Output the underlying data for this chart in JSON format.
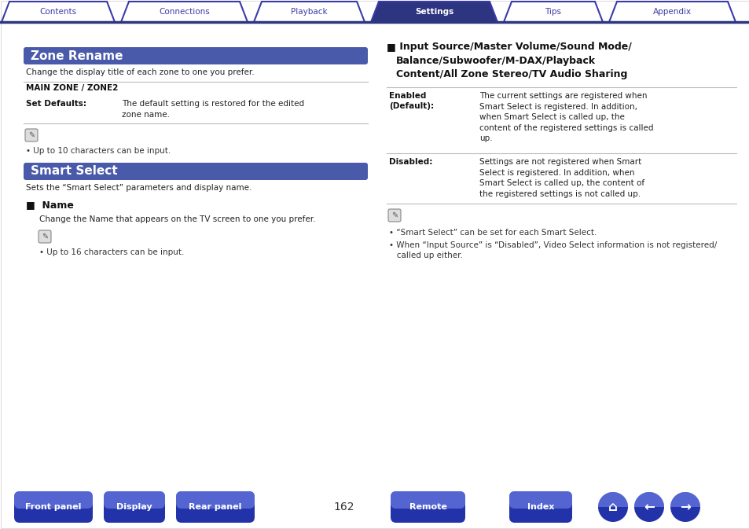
{
  "bg_color": "#ffffff",
  "tab_items": [
    "Contents",
    "Connections",
    "Playback",
    "Settings",
    "Tips",
    "Appendix"
  ],
  "tab_active_index": 3,
  "tab_active_color": "#2d3480",
  "tab_inactive_color": "#ffffff",
  "tab_text_color_active": "#ffffff",
  "tab_text_color_inactive": "#3a3aaa",
  "tab_border_color": "#3a3aaa",
  "tab_line_color": "#2d3480",
  "section1_title": "Zone Rename",
  "section1_title_bg": "#4a5aaa",
  "section1_title_color": "#ffffff",
  "section1_desc": "Change the display title of each zone to one you prefer.",
  "section1_sub": "MAIN ZONE / ZONE2",
  "section1_label": "Set Defaults:",
  "section1_value": "The default setting is restored for the edited\nzone name.",
  "section1_note": "• Up to 10 characters can be input.",
  "section2_title": "Smart Select",
  "section2_title_bg": "#4a5aaa",
  "section2_title_color": "#ffffff",
  "section2_desc": "Sets the “Smart Select” parameters and display name.",
  "section2_sub_header": "■  Name",
  "section2_sub_desc": "Change the Name that appears on the TV screen to one you prefer.",
  "section2_note": "• Up to 16 characters can be input.",
  "right_header_square": "■",
  "right_header_text": " Input Source/Master Volume/Sound Mode/\nBalance/Subwoofer/M-DAX/Playback\nContent/All Zone Stereo/TV Audio Sharing",
  "right_row1_label": "Enabled\n(Default):",
  "right_row1_text": "The current settings are registered when\nSmart Select is registered. In addition,\nwhen Smart Select is called up, the\ncontent of the registered settings is called\nup.",
  "right_row2_label": "Disabled:",
  "right_row2_text": "Settings are not registered when Smart\nSelect is registered. In addition, when\nSmart Select is called up, the content of\nthe registered settings is not called up.",
  "right_note1": "• “Smart Select” can be set for each Smart Select.",
  "right_note2": "• When “Input Source” is “Disabled”, Video Select information is not registered/\n   called up either.",
  "bottom_buttons": [
    "Front panel",
    "Display",
    "Rear panel",
    "Remote",
    "Index"
  ],
  "bottom_page": "162",
  "btn_color_top": "#5566cc",
  "btn_color_bot": "#2233aa",
  "btn_text_color": "#ffffff",
  "divider_color": "#bbbbbb"
}
